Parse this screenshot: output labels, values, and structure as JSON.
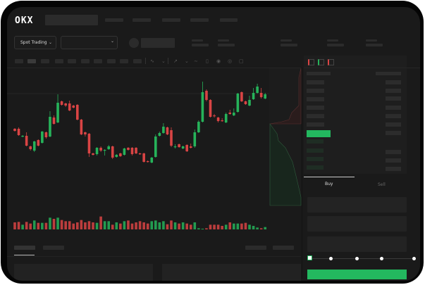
{
  "brand": {
    "logo_text": "OKX"
  },
  "header": {
    "market_selector_label": "Spot Trading"
  },
  "order_form": {
    "tabs": [
      {
        "label": "Buy",
        "active": true
      },
      {
        "label": "Sell",
        "active": false
      }
    ],
    "slider_value_percent": 0
  },
  "colors": {
    "up": "#26b35a",
    "down": "#d94444",
    "background": "#1a1a1a",
    "accent": "#23b85f"
  },
  "chart": {
    "type": "candlestick",
    "candles_ohlc": [
      [
        118,
        119,
        114,
        115
      ],
      [
        118,
        120,
        108,
        109
      ],
      [
        107,
        109,
        106,
        108
      ],
      [
        108,
        113,
        93,
        94
      ],
      [
        93,
        94,
        87,
        89
      ],
      [
        87,
        101,
        85,
        100
      ],
      [
        102,
        103,
        93,
        94
      ],
      [
        98,
        115,
        97,
        114
      ],
      [
        113,
        114,
        104,
        106
      ],
      [
        107,
        143,
        106,
        135
      ],
      [
        134,
        137,
        124,
        125
      ],
      [
        127,
        167,
        126,
        155
      ],
      [
        157,
        158,
        151,
        152
      ],
      [
        154,
        155,
        149,
        151
      ],
      [
        154,
        158,
        143,
        144
      ],
      [
        151,
        152,
        147,
        148
      ],
      [
        152,
        153,
        130,
        131
      ],
      [
        131,
        132,
        109,
        110
      ],
      [
        113,
        114,
        107,
        110
      ],
      [
        111,
        112,
        78,
        83
      ],
      [
        83,
        84,
        80,
        81
      ],
      [
        82,
        92,
        80,
        91
      ],
      [
        91,
        93,
        85,
        87
      ],
      [
        87,
        89,
        80,
        88
      ],
      [
        89,
        95,
        88,
        93
      ],
      [
        93,
        94,
        75,
        77
      ],
      [
        78,
        82,
        77,
        81
      ],
      [
        83,
        84,
        78,
        79
      ],
      [
        81,
        91,
        80,
        90
      ],
      [
        91,
        92,
        87,
        88
      ],
      [
        91,
        92,
        80,
        82
      ],
      [
        91,
        92,
        82,
        83
      ],
      [
        83,
        84,
        81,
        82
      ],
      [
        83,
        84,
        70,
        71
      ],
      [
        72,
        73,
        70,
        71
      ],
      [
        70,
        78,
        69,
        77
      ],
      [
        78,
        110,
        77,
        107
      ],
      [
        108,
        114,
        107,
        112
      ],
      [
        112,
        126,
        111,
        121
      ],
      [
        120,
        121,
        109,
        110
      ],
      [
        116,
        120,
        92,
        94
      ],
      [
        92,
        96,
        90,
        93
      ],
      [
        96,
        97,
        91,
        92
      ],
      [
        90,
        94,
        89,
        93
      ],
      [
        95,
        96,
        85,
        86
      ],
      [
        93,
        97,
        90,
        91
      ],
      [
        93,
        117,
        91,
        113
      ],
      [
        113,
        130,
        112,
        128
      ],
      [
        128,
        185,
        127,
        170
      ],
      [
        172,
        174,
        157,
        159
      ],
      [
        159,
        160,
        134,
        135
      ],
      [
        137,
        139,
        134,
        136
      ],
      [
        134,
        135,
        127,
        129
      ],
      [
        130,
        133,
        128,
        129
      ],
      [
        127,
        141,
        126,
        139
      ],
      [
        141,
        145,
        138,
        139
      ],
      [
        137,
        147,
        136,
        141
      ],
      [
        142,
        169,
        141,
        168
      ],
      [
        170,
        171,
        156,
        157
      ],
      [
        157,
        158,
        152,
        153
      ],
      [
        151,
        165,
        150,
        159
      ],
      [
        160,
        176,
        159,
        169
      ],
      [
        169,
        182,
        168,
        178
      ],
      [
        169,
        176,
        161,
        163
      ],
      [
        161,
        169,
        160,
        167
      ]
    ],
    "volumes": [
      30,
      32,
      20,
      32,
      25,
      38,
      28,
      28,
      28,
      50,
      45,
      50,
      40,
      35,
      35,
      25,
      30,
      40,
      30,
      35,
      30,
      28,
      55,
      35,
      35,
      20,
      30,
      25,
      35,
      38,
      25,
      30,
      35,
      30,
      25,
      35,
      38,
      30,
      35,
      22,
      38,
      30,
      25,
      30,
      25,
      20,
      30,
      5,
      3,
      5,
      20,
      20,
      20,
      15,
      20,
      30,
      25,
      25,
      25,
      28,
      20,
      15,
      8,
      5,
      10
    ],
    "reference_price": 168
  }
}
